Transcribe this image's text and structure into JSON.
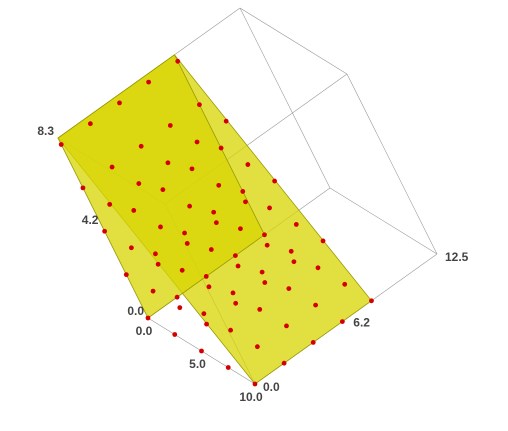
{
  "chart_data": {
    "type": "scatter3d",
    "xlim": [
      0,
      10
    ],
    "ylim": [
      0,
      12.5
    ],
    "zlim": [
      0,
      8.3
    ],
    "xticks": [
      {
        "value": 0,
        "label": "0.0"
      },
      {
        "value": 5,
        "label": "5.0"
      },
      {
        "value": 10,
        "label": "10.0"
      }
    ],
    "yticks": [
      {
        "value": 0,
        "label": "0.0"
      },
      6.2,
      12.5
    ],
    "zticks": [
      {
        "value": 0,
        "label": "0.0"
      },
      4.2,
      8.3
    ],
    "color": "#d40000",
    "face_color": "#d8d400",
    "faces": [
      [
        [
          0,
          0,
          8.3
        ],
        [
          10,
          0,
          0
        ],
        [
          10,
          8,
          0
        ],
        [
          0,
          8,
          8.3
        ]
      ],
      [
        [
          0,
          0,
          0
        ],
        [
          0,
          0,
          8.3
        ],
        [
          0,
          8,
          8.3
        ],
        [
          0,
          8,
          0
        ]
      ]
    ],
    "points": [
      [
        0,
        0,
        0
      ],
      [
        0,
        0,
        2
      ],
      [
        0,
        0,
        4
      ],
      [
        0,
        0,
        6
      ],
      [
        0,
        0,
        8
      ],
      [
        0,
        2,
        0
      ],
      [
        0,
        2,
        2
      ],
      [
        0,
        2,
        4
      ],
      [
        0,
        2,
        6
      ],
      [
        0,
        2,
        8
      ],
      [
        0,
        4,
        0
      ],
      [
        0,
        4,
        2
      ],
      [
        0,
        4,
        4
      ],
      [
        0,
        4,
        6
      ],
      [
        0,
        4,
        8
      ],
      [
        0,
        6,
        0
      ],
      [
        0,
        6,
        2
      ],
      [
        0,
        6,
        4
      ],
      [
        0,
        6,
        6
      ],
      [
        0,
        6,
        8
      ],
      [
        0,
        8,
        0
      ],
      [
        0,
        8,
        2
      ],
      [
        0,
        8,
        4
      ],
      [
        0,
        8,
        6
      ],
      [
        0,
        8,
        8
      ],
      [
        2.5,
        0,
        0
      ],
      [
        2.5,
        0,
        2
      ],
      [
        2.5,
        0,
        4
      ],
      [
        2.5,
        0,
        6
      ],
      [
        2.5,
        2,
        0
      ],
      [
        2.5,
        2,
        2
      ],
      [
        2.5,
        2,
        4
      ],
      [
        2.5,
        2,
        6
      ],
      [
        2.5,
        4,
        0
      ],
      [
        2.5,
        4,
        2
      ],
      [
        2.5,
        4,
        4
      ],
      [
        2.5,
        4,
        6
      ],
      [
        2.5,
        6,
        0
      ],
      [
        2.5,
        6,
        2
      ],
      [
        2.5,
        6,
        4
      ],
      [
        2.5,
        6,
        6
      ],
      [
        2.5,
        8,
        0
      ],
      [
        2.5,
        8,
        2
      ],
      [
        2.5,
        8,
        4
      ],
      [
        2.5,
        8,
        6
      ],
      [
        5,
        0,
        0
      ],
      [
        5,
        0,
        2
      ],
      [
        5,
        0,
        4
      ],
      [
        5,
        2,
        0
      ],
      [
        5,
        2,
        2
      ],
      [
        5,
        2,
        4
      ],
      [
        5,
        4,
        0
      ],
      [
        5,
        4,
        2
      ],
      [
        5,
        4,
        4
      ],
      [
        5,
        6,
        0
      ],
      [
        5,
        6,
        2
      ],
      [
        5,
        6,
        4
      ],
      [
        5,
        8,
        0
      ],
      [
        5,
        8,
        2
      ],
      [
        5,
        8,
        4
      ],
      [
        7.5,
        0,
        0
      ],
      [
        7.5,
        0,
        2
      ],
      [
        7.5,
        2,
        0
      ],
      [
        7.5,
        2,
        2
      ],
      [
        7.5,
        4,
        0
      ],
      [
        7.5,
        4,
        2
      ],
      [
        7.5,
        6,
        0
      ],
      [
        7.5,
        6,
        2
      ],
      [
        7.5,
        8,
        0
      ],
      [
        7.5,
        8,
        2
      ],
      [
        10,
        0,
        0
      ],
      [
        10,
        2,
        0
      ],
      [
        10,
        4,
        0
      ],
      [
        10,
        6,
        0
      ],
      [
        10,
        8,
        0
      ]
    ]
  }
}
